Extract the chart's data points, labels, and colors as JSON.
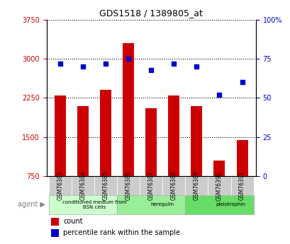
{
  "title": "GDS1518 / 1389805_at",
  "samples": [
    "GSM76383",
    "GSM76384",
    "GSM76385",
    "GSM76386",
    "GSM76387",
    "GSM76388",
    "GSM76389",
    "GSM76390",
    "GSM76391"
  ],
  "counts": [
    2300,
    2100,
    2400,
    3300,
    2050,
    2300,
    2100,
    1050,
    1450
  ],
  "percentiles": [
    72,
    70,
    72,
    75,
    68,
    72,
    70,
    52,
    60
  ],
  "ylim_left": [
    750,
    3750
  ],
  "ylim_right": [
    0,
    100
  ],
  "yticks_left": [
    750,
    1500,
    2250,
    3000,
    3750
  ],
  "yticks_right": [
    0,
    25,
    50,
    75,
    100
  ],
  "bar_color": "#cc0000",
  "scatter_color": "#0000cc",
  "agent_groups": [
    {
      "label": "conditioned medium from\nBSN cells",
      "start": 0,
      "end": 3,
      "color": "#ccffcc"
    },
    {
      "label": "heregulin",
      "start": 3,
      "end": 6,
      "color": "#99ee99"
    },
    {
      "label": "pleiotrophin",
      "start": 6,
      "end": 9,
      "color": "#66dd66"
    }
  ],
  "agent_label": "agent",
  "legend_count_label": "count",
  "legend_pct_label": "percentile rank within the sample",
  "xlabel_color": "#cc0000",
  "right_axis_color": "#0000cc",
  "grid_color": "#000000",
  "tick_bg_color": "#cccccc"
}
